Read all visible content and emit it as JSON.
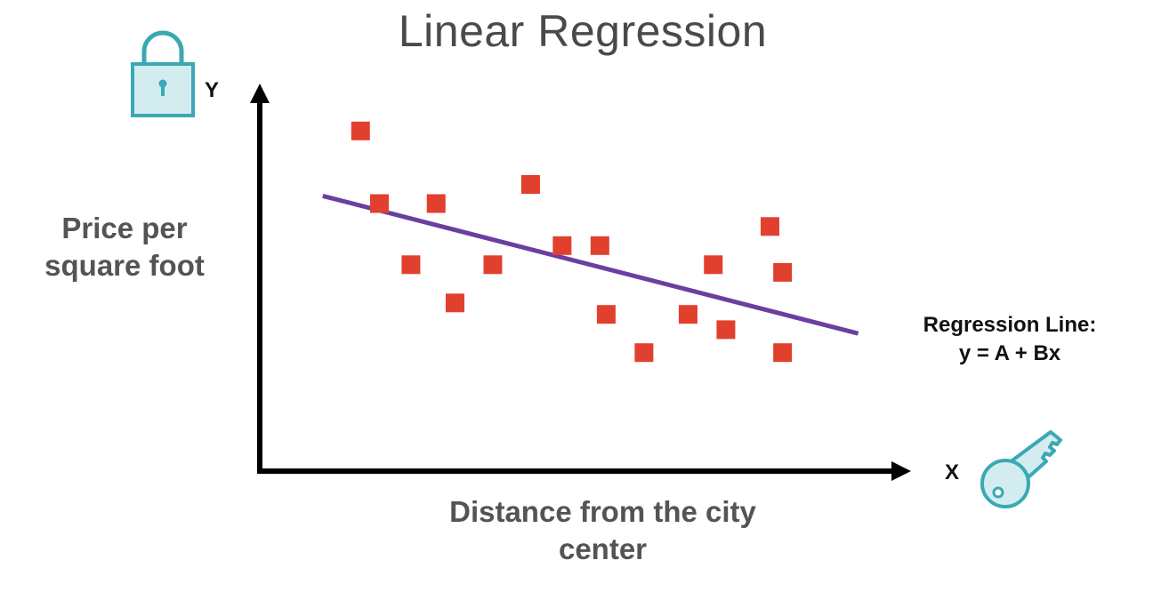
{
  "chart_data": {
    "type": "scatter",
    "title": "Linear Regression",
    "xlabel": "Distance from the city center",
    "ylabel": "Price per square foot",
    "x_axis_letter": "X",
    "y_axis_letter": "Y",
    "grid": false,
    "legend": "none",
    "xlim": [
      0,
      100
    ],
    "ylim": [
      0,
      100
    ],
    "points": [
      {
        "x": 16,
        "y": 89
      },
      {
        "x": 19,
        "y": 70
      },
      {
        "x": 24,
        "y": 54
      },
      {
        "x": 28,
        "y": 70
      },
      {
        "x": 31,
        "y": 44
      },
      {
        "x": 37,
        "y": 54
      },
      {
        "x": 43,
        "y": 75
      },
      {
        "x": 48,
        "y": 59
      },
      {
        "x": 54,
        "y": 59
      },
      {
        "x": 55,
        "y": 41
      },
      {
        "x": 61,
        "y": 31
      },
      {
        "x": 68,
        "y": 41
      },
      {
        "x": 72,
        "y": 54
      },
      {
        "x": 74,
        "y": 37
      },
      {
        "x": 81,
        "y": 64
      },
      {
        "x": 83,
        "y": 52
      },
      {
        "x": 83,
        "y": 31
      }
    ],
    "regression_line": {
      "label_line1": "Regression Line:",
      "label_line2": "y = A + Bx",
      "x_start": 10,
      "y_start": 72,
      "x_end": 95,
      "y_end": 36
    },
    "colors": {
      "point": "#e2402e",
      "line": "#6b3fa0",
      "axis": "#000000",
      "icon": "#3aa8b5",
      "icon_fill": "#d3ecf0"
    }
  },
  "icons": {
    "y_icon": "padlock-icon",
    "x_icon": "key-icon"
  }
}
